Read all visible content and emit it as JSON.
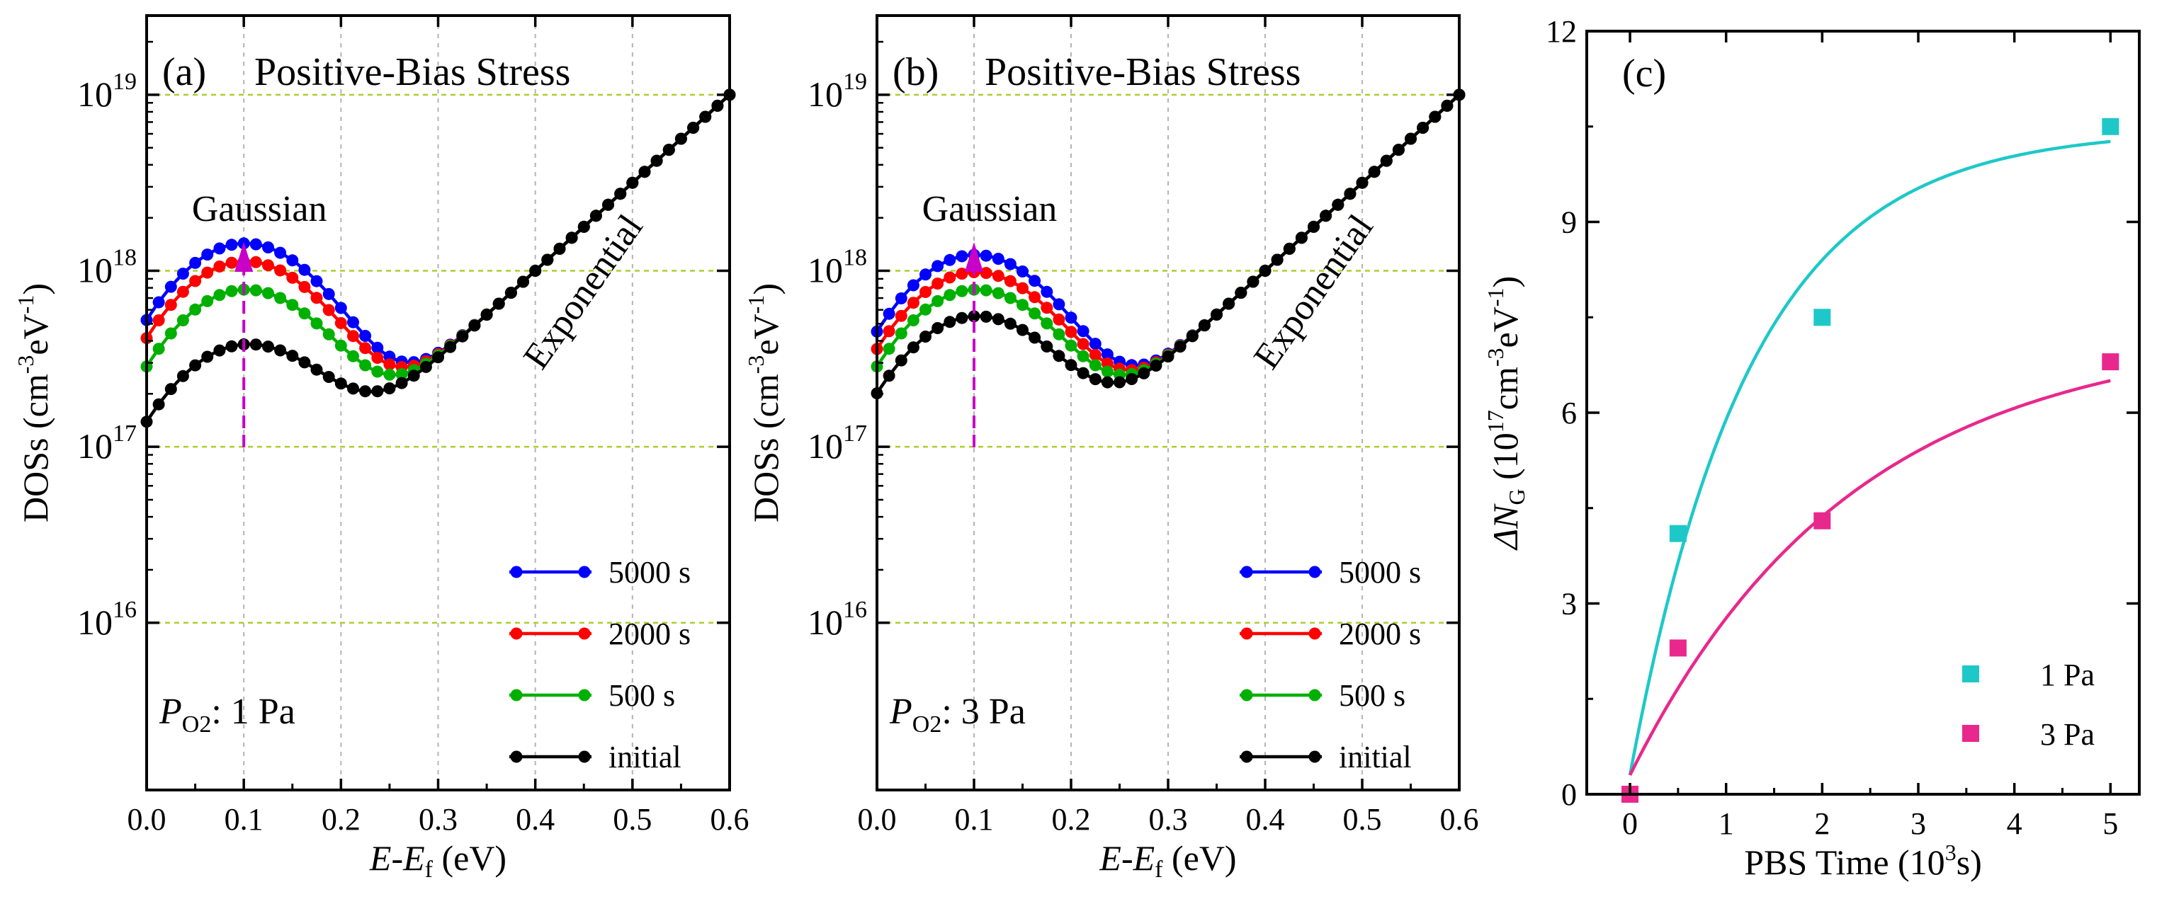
{
  "chart_data": [
    {
      "id": "a",
      "type": "line",
      "panel_label": "(a)",
      "title": "Positive-Bias Stress",
      "xlabel_parts": [
        "E",
        "-",
        "E",
        "f",
        " (eV)"
      ],
      "ylabel_parts": [
        "DOSs (cm",
        "-3",
        "eV",
        "-1",
        ")"
      ],
      "xlim": [
        0,
        0.6
      ],
      "xticks": [
        0.0,
        0.1,
        0.2,
        0.3,
        0.4,
        0.5,
        0.6
      ],
      "xtick_labels": [
        "0.0",
        "0.1",
        "0.2",
        "0.3",
        "0.4",
        "0.5",
        "0.6"
      ],
      "ylim_log10": [
        15.05,
        19.45
      ],
      "yticks_log10": [
        16,
        17,
        18,
        19
      ],
      "ytick_base": "10",
      "ytick_exponents": [
        "16",
        "17",
        "18",
        "19"
      ],
      "grid": true,
      "annotations": {
        "gaussian": "Gaussian",
        "exponential": "Exponential",
        "po2_prefix": "P",
        "po2_sub": "O2",
        "po2_suffix": ": 1 Pa"
      },
      "model": {
        "comment": "log10(DOS) = log10(10^(19 - 5(0.6-E)) + A*exp(-((E-0.1)/0.1)^2))",
        "exp_top": 19,
        "exp_slope_per_eV": 5,
        "gauss_center": 0.1,
        "gauss_width": 0.1
      },
      "x_points": [
        0.0,
        0.0125,
        0.025,
        0.0375,
        0.05,
        0.0625,
        0.075,
        0.0875,
        0.1,
        0.1125,
        0.125,
        0.1375,
        0.15,
        0.1625,
        0.175,
        0.1875,
        0.2,
        0.2125,
        0.225,
        0.2375,
        0.25,
        0.2625,
        0.275,
        0.2875,
        0.3,
        0.3125,
        0.325,
        0.3375,
        0.35,
        0.3625,
        0.375,
        0.3875,
        0.4,
        0.4125,
        0.425,
        0.4375,
        0.45,
        0.4625,
        0.475,
        0.4875,
        0.5,
        0.5125,
        0.525,
        0.5375,
        0.55,
        0.5625,
        0.575,
        0.5875,
        0.6
      ],
      "legend": [
        "5000 s",
        "2000 s",
        "500 s",
        "initial"
      ],
      "series": [
        {
          "name": "5000 s",
          "color": "#0000ff",
          "gauss_amplitude": 1.4e+18
        },
        {
          "name": "2000 s",
          "color": "#ff0000",
          "gauss_amplitude": 1.1e+18
        },
        {
          "name": "500 s",
          "color": "#00b000",
          "gauss_amplitude": 7.5e+17
        },
        {
          "name": "initial",
          "color": "#000000",
          "gauss_amplitude": 3.5e+17
        }
      ]
    },
    {
      "id": "b",
      "type": "line",
      "panel_label": "(b)",
      "title": "Positive-Bias Stress",
      "xlabel_parts": [
        "E",
        "-",
        "E",
        "f",
        " (eV)"
      ],
      "ylabel_parts": [
        "DOSs (cm",
        "-3",
        "eV",
        "-1",
        ")"
      ],
      "xlim": [
        0,
        0.6
      ],
      "xticks": [
        0.0,
        0.1,
        0.2,
        0.3,
        0.4,
        0.5,
        0.6
      ],
      "xtick_labels": [
        "0.0",
        "0.1",
        "0.2",
        "0.3",
        "0.4",
        "0.5",
        "0.6"
      ],
      "ylim_log10": [
        15.05,
        19.45
      ],
      "yticks_log10": [
        16,
        17,
        18,
        19
      ],
      "ytick_base": "10",
      "ytick_exponents": [
        "16",
        "17",
        "18",
        "19"
      ],
      "grid": true,
      "annotations": {
        "gaussian": "Gaussian",
        "exponential": "Exponential",
        "po2_prefix": "P",
        "po2_sub": "O2",
        "po2_suffix": ": 3 Pa"
      },
      "model": {
        "comment": "log10(DOS) = log10(10^(19 - 5(0.6-E)) + A*exp(-((E-0.1)/0.1)^2))",
        "exp_top": 19,
        "exp_slope_per_eV": 5,
        "gauss_center": 0.1,
        "gauss_width": 0.1
      },
      "x_points": [
        0.0,
        0.0125,
        0.025,
        0.0375,
        0.05,
        0.0625,
        0.075,
        0.0875,
        0.1,
        0.1125,
        0.125,
        0.1375,
        0.15,
        0.1625,
        0.175,
        0.1875,
        0.2,
        0.2125,
        0.225,
        0.2375,
        0.25,
        0.2625,
        0.275,
        0.2875,
        0.3,
        0.3125,
        0.325,
        0.3375,
        0.35,
        0.3625,
        0.375,
        0.3875,
        0.4,
        0.4125,
        0.425,
        0.4375,
        0.45,
        0.4625,
        0.475,
        0.4875,
        0.5,
        0.5125,
        0.525,
        0.5375,
        0.55,
        0.5625,
        0.575,
        0.5875,
        0.6
      ],
      "legend": [
        "5000 s",
        "2000 s",
        "500 s",
        "initial"
      ],
      "series": [
        {
          "name": "5000 s",
          "color": "#0000ff",
          "gauss_amplitude": 1.2e+18
        },
        {
          "name": "2000 s",
          "color": "#ff0000",
          "gauss_amplitude": 9.5e+17
        },
        {
          "name": "500 s",
          "color": "#00b000",
          "gauss_amplitude": 7.5e+17
        },
        {
          "name": "initial",
          "color": "#000000",
          "gauss_amplitude": 5.2e+17
        }
      ]
    },
    {
      "id": "c",
      "type": "scatter",
      "panel_label": "(c)",
      "xlabel": "PBS Time (10",
      "xlabel_sup": "3",
      "xlabel_suffix": "s)",
      "ylabel_parts": [
        "ΔN",
        "G",
        " (10",
        "17",
        "cm",
        "-3",
        "eV",
        "-1",
        ")"
      ],
      "xlim": [
        -0.45,
        5.3
      ],
      "ylim": [
        0,
        12
      ],
      "xticks_pos": [
        0,
        1,
        2,
        3,
        4,
        5
      ],
      "xtick_labels": [
        "0",
        "1",
        "2",
        "3",
        "4",
        "5"
      ],
      "yticks": [
        0,
        3,
        6,
        9,
        12
      ],
      "ytick_labels": [
        "0",
        "3",
        "6",
        "9",
        "12"
      ],
      "grid": false,
      "legend": [
        "1 Pa",
        "3 Pa"
      ],
      "series": [
        {
          "name": "1 Pa",
          "color": "#1ec8c8",
          "x": [
            0,
            0.5,
            2,
            5
          ],
          "y": [
            0,
            4.1,
            7.5,
            10.5
          ],
          "fit": {
            "offset": 0.3,
            "amplitude": 10.15,
            "tau": 1.25
          }
        },
        {
          "name": "3 Pa",
          "color": "#e8288c",
          "x": [
            0,
            0.5,
            2,
            5
          ],
          "y": [
            0,
            2.3,
            4.3,
            6.8
          ],
          "fit": {
            "offset": 0.3,
            "amplitude": 7.0,
            "tau": 2.3
          }
        }
      ]
    }
  ]
}
